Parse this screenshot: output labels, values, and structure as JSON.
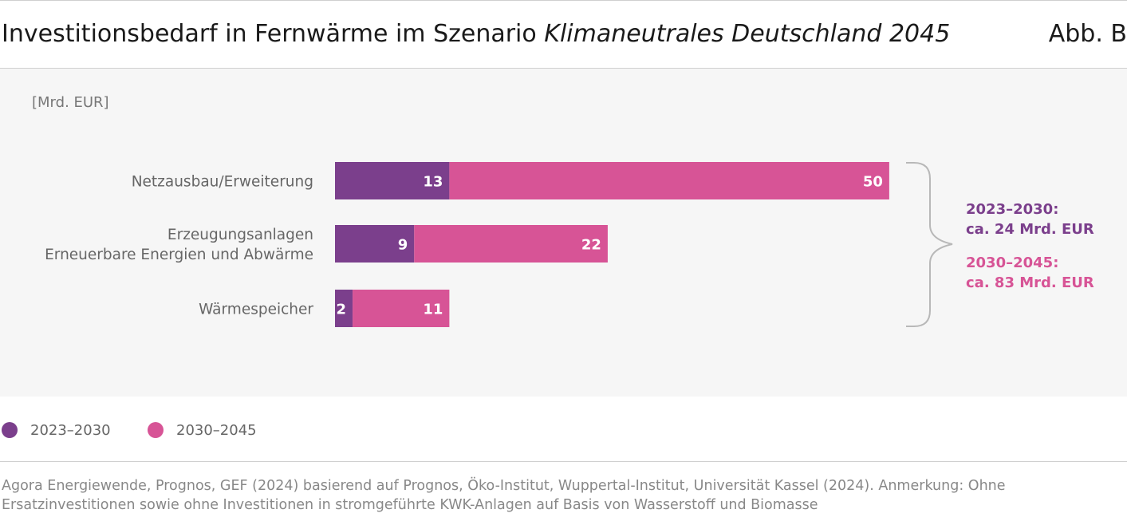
{
  "header": {
    "title_plain": "Investitionsbedarf in Fernwärme im Szenario ",
    "title_italic": "Klimaneutrales Deutschland 2045",
    "figure_number": "Abb. B"
  },
  "chart_data": {
    "type": "bar",
    "orientation": "horizontal",
    "stacked": true,
    "unit_label": "[Mrd. EUR]",
    "categories": [
      [
        "Netzausbau/Erweiterung"
      ],
      [
        "Erzeugungsanlagen",
        "Erneuerbare Energien und Abwärme"
      ],
      [
        "Wärmespeicher"
      ]
    ],
    "series": [
      {
        "name": "2023–2030",
        "color": "#7b3f8c",
        "values": [
          13,
          9,
          2
        ]
      },
      {
        "name": "2030–2045",
        "color": "#d75496",
        "values": [
          50,
          22,
          11
        ]
      }
    ],
    "xlim": [
      0,
      63
    ],
    "grid": false,
    "annotations": [
      {
        "lines": [
          "2023–2030:",
          "ca. 24 Mrd. EUR"
        ],
        "color": "#7b3f8c"
      },
      {
        "lines": [
          "2030–2045:",
          "ca. 83 Mrd. EUR"
        ],
        "color": "#d75496"
      }
    ]
  },
  "legend": [
    {
      "label": "2023–2030",
      "color": "#7b3f8c"
    },
    {
      "label": "2030–2045",
      "color": "#d75496"
    }
  ],
  "source": {
    "text": "Agora Energiewende, Prognos, GEF (2024) basierend auf Prognos, Öko-Institut, Wuppertal-Institut, Universität Kassel (2024). Anmerkung: Ohne Ersatzinvestitionen sowie ohne Investitionen in stromgeführte KWK-Anlagen auf Basis von Wasserstoff und Biomasse"
  }
}
